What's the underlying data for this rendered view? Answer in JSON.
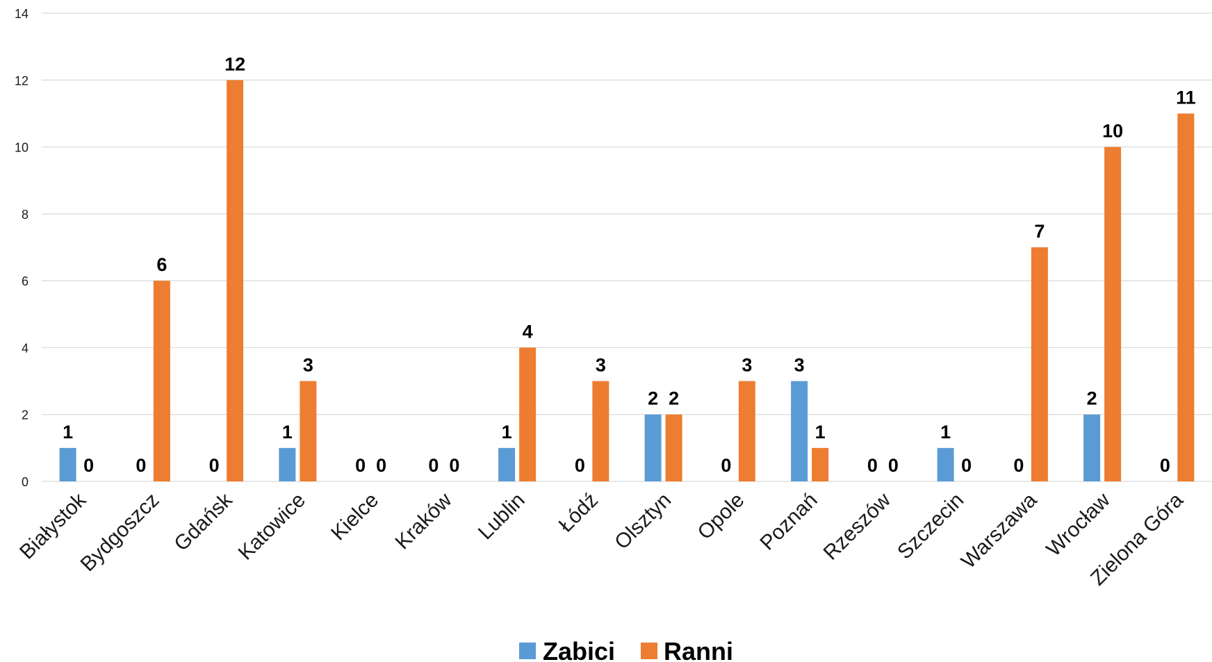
{
  "chart_data": {
    "type": "bar",
    "title": "",
    "xlabel": "",
    "ylabel": "",
    "ylim": [
      0,
      14
    ],
    "yticks": [
      0,
      2,
      4,
      6,
      8,
      10,
      12,
      14
    ],
    "grid": true,
    "legend_position": "bottom",
    "categories": [
      "Białystok",
      "Bydgoszcz",
      "Gdańsk",
      "Katowice",
      "Kielce",
      "Kraków",
      "Lublin",
      "Łódź",
      "Olsztyn",
      "Opole",
      "Poznań",
      "Rzeszów",
      "Szczecin",
      "Warszawa",
      "Wrocław",
      "Zielona Góra"
    ],
    "series": [
      {
        "name": "Zabici",
        "color": "#5b9bd5",
        "values": [
          1,
          0,
          0,
          1,
          0,
          0,
          1,
          0,
          2,
          0,
          3,
          0,
          1,
          0,
          2,
          0
        ]
      },
      {
        "name": "Ranni",
        "color": "#ed7d31",
        "values": [
          0,
          6,
          12,
          3,
          0,
          0,
          4,
          3,
          2,
          3,
          1,
          0,
          0,
          7,
          10,
          11
        ]
      }
    ]
  }
}
